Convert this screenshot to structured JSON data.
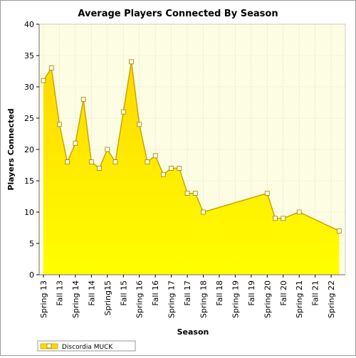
{
  "chart_data": {
    "type": "area",
    "title": "Average Players Connected By Season",
    "xlabel": "Season",
    "ylabel": "Players Connected",
    "ylim": [
      0,
      40
    ],
    "yticks": [
      0,
      5,
      10,
      15,
      20,
      25,
      30,
      35,
      40
    ],
    "grid": true,
    "legend_position": "bottom-left",
    "colors": {
      "area_top": "#ffd800",
      "area_bottom": "#ffff00",
      "line": "#c9a400",
      "marker_fill": "#fffde0",
      "marker_stroke": "#a08000",
      "plot_bg": "#fdfde4",
      "grid": "#c8c8a0",
      "legend_swatch": "#ffd800"
    },
    "x_ticks": [
      "Spring 13",
      "Fall 13",
      "Spring 14",
      "Fall 14",
      "Spring15",
      "Fall 15",
      "Spring 16",
      "Fall 16",
      "Spring 17",
      "Fall 17",
      "Spring 18",
      "Fall 18",
      "Spring 19",
      "Fall 19",
      "Spring 20",
      "Fall 20",
      "Spring 21",
      "Fall 21",
      "Spring 22"
    ],
    "series": [
      {
        "name": "Discordia MUCK",
        "points": [
          {
            "x": 0,
            "y": 31
          },
          {
            "x": 0.5,
            "y": 33
          },
          {
            "x": 1,
            "y": 24
          },
          {
            "x": 1.5,
            "y": 18
          },
          {
            "x": 2,
            "y": 21
          },
          {
            "x": 2.5,
            "y": 28
          },
          {
            "x": 3,
            "y": 18
          },
          {
            "x": 3.5,
            "y": 17
          },
          {
            "x": 4,
            "y": 20
          },
          {
            "x": 4.5,
            "y": 18
          },
          {
            "x": 5,
            "y": 26
          },
          {
            "x": 5.5,
            "y": 34
          },
          {
            "x": 6,
            "y": 24
          },
          {
            "x": 6.5,
            "y": 18
          },
          {
            "x": 7,
            "y": 19
          },
          {
            "x": 7.5,
            "y": 16
          },
          {
            "x": 8,
            "y": 17
          },
          {
            "x": 8.5,
            "y": 17
          },
          {
            "x": 9,
            "y": 13
          },
          {
            "x": 9.5,
            "y": 13
          },
          {
            "x": 10,
            "y": 10
          },
          {
            "x": 14,
            "y": 13
          },
          {
            "x": 14.5,
            "y": 9
          },
          {
            "x": 15,
            "y": 9
          },
          {
            "x": 16,
            "y": 10
          },
          {
            "x": 18.5,
            "y": 7
          }
        ]
      }
    ]
  }
}
